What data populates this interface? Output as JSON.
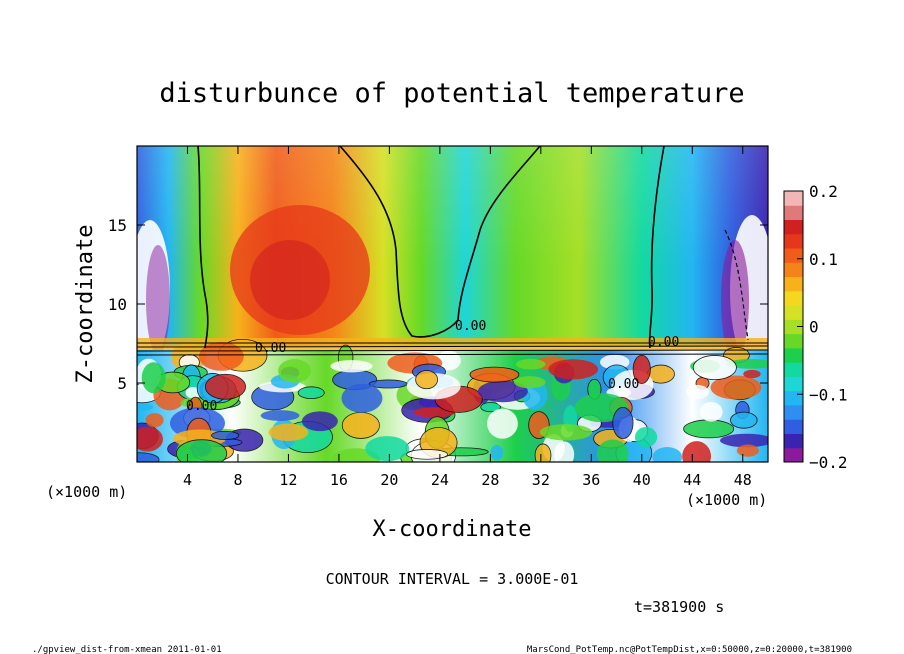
{
  "chart_data": {
    "type": "heatmap",
    "title": "disturbunce of potential temperature",
    "xlabel": "X-coordinate",
    "ylabel": "Z-coordinate",
    "xlim": [
      0,
      50
    ],
    "ylim": [
      0,
      20
    ],
    "x_unit": "(×1000 m)",
    "y_unit": "(×1000 m)",
    "x_ticks": [
      "4",
      "8",
      "12",
      "16",
      "20",
      "24",
      "28",
      "32",
      "36",
      "40",
      "44",
      "48"
    ],
    "y_ticks": [
      "5",
      "10",
      "15"
    ],
    "colorbar": {
      "min": -0.2,
      "max": 0.2,
      "tick_labels": [
        "0.2",
        "0.1",
        "0",
        "−0.1",
        "−0.2"
      ],
      "colors": [
        "#8c1a9c",
        "#3a23b0",
        "#2f5fe0",
        "#2f8ff0",
        "#22b6f2",
        "#1fd6d6",
        "#12d9a0",
        "#1dcf4a",
        "#66d927",
        "#a6df26",
        "#d6e024",
        "#f3d81f",
        "#f7b21b",
        "#f48419",
        "#f05c1a",
        "#e5381a",
        "#d0201f",
        "#e07a7a",
        "#f2b6b6"
      ]
    },
    "contour_labels": [
      "0.00",
      "0.00",
      "0.00",
      "0.00",
      "0.00"
    ],
    "contour_interval_label": "CONTOUR INTERVAL = 3.000E-01",
    "time_label": "t=381900 s",
    "grid": false,
    "legend": "colorbar-right"
  },
  "footer": {
    "left": "./gpview_dist-from-xmean  2011-01-01",
    "right": "MarsCond_PotTemp.nc@PotTempDist,x=0:50000,z=0:20000,t=381900"
  }
}
